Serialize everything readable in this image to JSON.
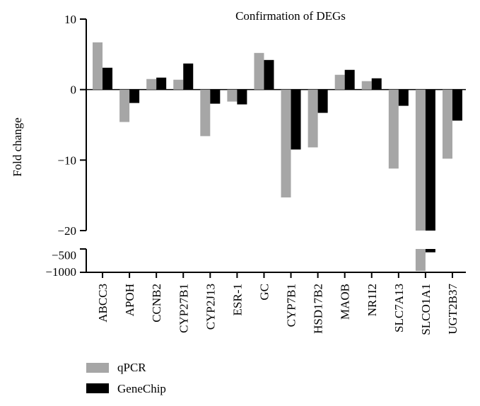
{
  "chart_data": {
    "type": "bar",
    "title": "Confirmation of DEGs",
    "xlabel": "",
    "ylabel": "Fold change",
    "categories": [
      "ABCC3",
      "APOH",
      "CCNB2",
      "CYP27B1",
      "CYP2J13",
      "ESR-1",
      "GC",
      "CYP7B1",
      "HSD17B2",
      "MAOB",
      "NR1I2",
      "SLC7A13",
      "SLCO1A1",
      "UGT2B37"
    ],
    "series": [
      {
        "name": "qPCR",
        "color": "#a6a6a6",
        "values": [
          6.7,
          -4.6,
          1.5,
          1.4,
          -6.6,
          -1.7,
          5.2,
          -15.3,
          -8.2,
          2.1,
          1.2,
          -11.2,
          -960,
          -9.8
        ]
      },
      {
        "name": "GeneChip",
        "color": "#000000",
        "values": [
          3.1,
          -1.9,
          1.7,
          3.7,
          -2.0,
          -2.1,
          4.2,
          -8.5,
          -3.3,
          2.8,
          1.6,
          -2.3,
          -400,
          -4.4
        ]
      }
    ],
    "ylim": [
      -1000,
      10
    ],
    "axis_break": {
      "upper_range": [
        -20,
        10
      ],
      "lower_range": [
        -1000,
        -300
      ]
    },
    "y_ticks_upper": [
      10,
      0,
      -10,
      -20
    ],
    "y_ticks_lower": [
      -500,
      -1000
    ],
    "y_tick_labels_upper": [
      "10",
      "0",
      "−10",
      "−20"
    ],
    "y_tick_labels_lower": [
      "−500",
      "−1000"
    ],
    "legend_position": "bottom-left",
    "grid": false
  }
}
